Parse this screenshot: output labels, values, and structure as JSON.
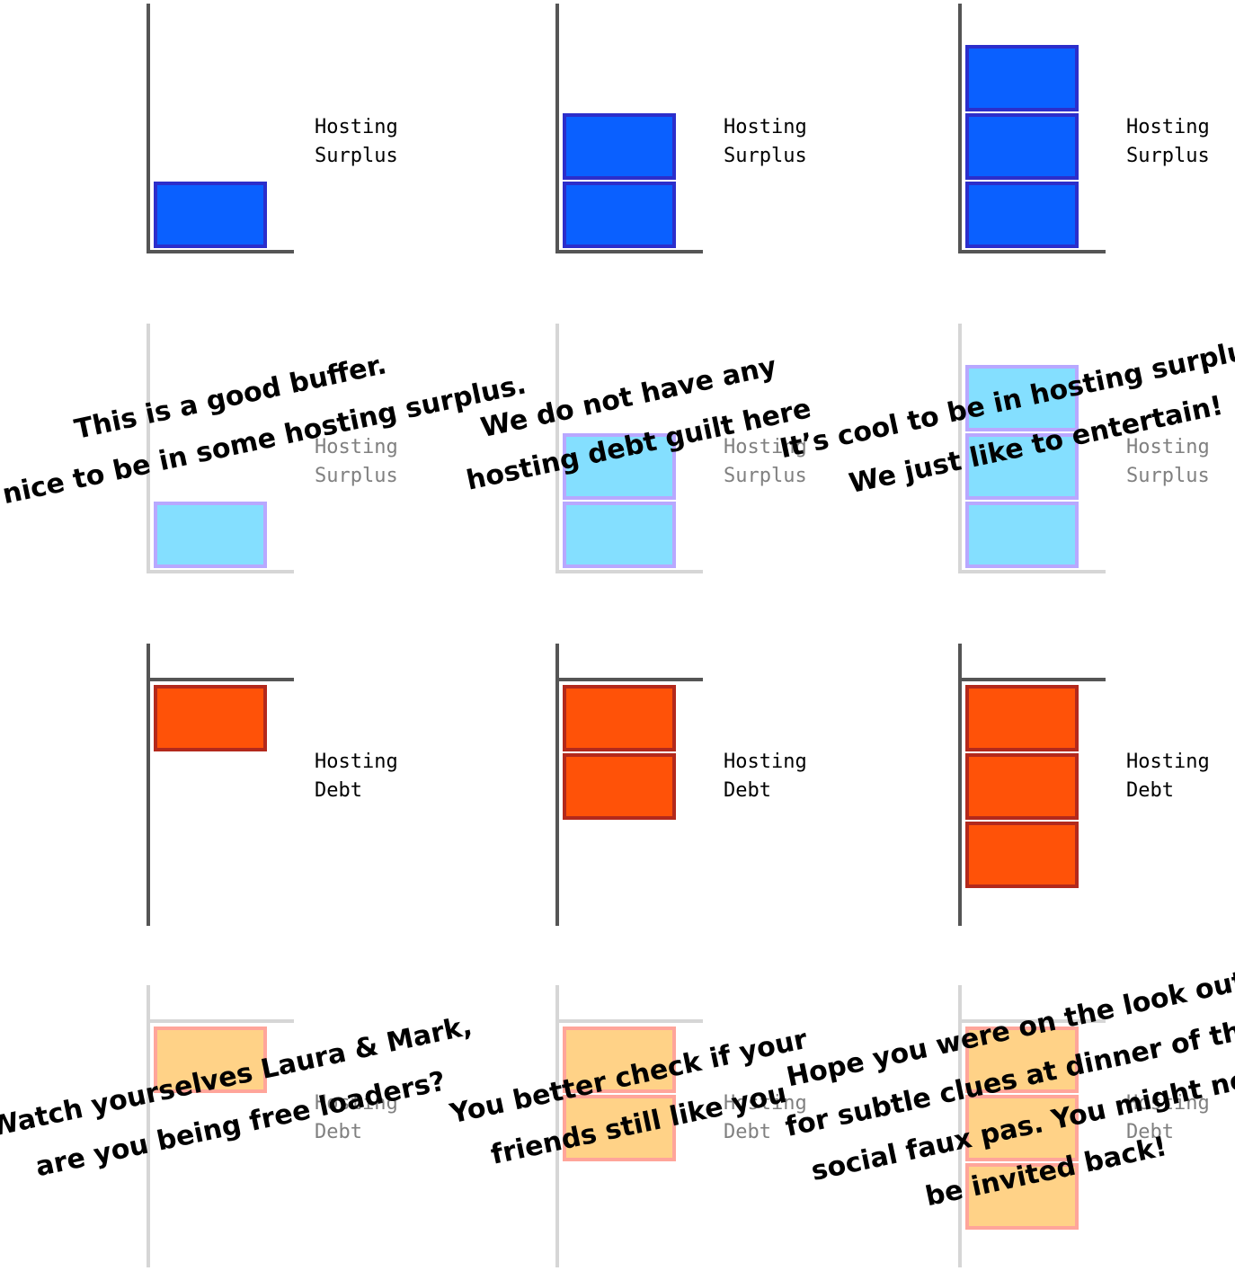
{
  "colors": {
    "axis_dark": "#555555",
    "axis_light": "#d6d6d6",
    "surplus_fill": "#0a60ff",
    "surplus_stroke": "#2c2ecb",
    "surplus_faded_fill": "#84dfff",
    "surplus_faded_stroke": "#b8a8ff",
    "debt_fill": "#ff5208",
    "debt_stroke": "#b3291c",
    "debt_faded_fill": "#ffd287",
    "debt_faded_stroke": "#ffa59a",
    "label_dark": "#000000",
    "label_faded": "#808080"
  },
  "chart_data": [
    {
      "type": "bar",
      "kind": "surplus",
      "faded": false,
      "value": 1,
      "label_line1": "Hosting",
      "label_line2": "Surplus",
      "caption": []
    },
    {
      "type": "bar",
      "kind": "surplus",
      "faded": false,
      "value": 2,
      "label_line1": "Hosting",
      "label_line2": "Surplus",
      "caption": []
    },
    {
      "type": "bar",
      "kind": "surplus",
      "faded": false,
      "value": 3,
      "label_line1": "Hosting",
      "label_line2": "Surplus",
      "caption": []
    },
    {
      "type": "bar",
      "kind": "surplus",
      "faded": true,
      "value": 1,
      "label_line1": "Hosting",
      "label_line2": "Surplus",
      "caption": [
        "This is a good buffer.",
        "Its nice to be in some hosting surplus."
      ]
    },
    {
      "type": "bar",
      "kind": "surplus",
      "faded": true,
      "value": 2,
      "label_line1": "Hosting",
      "label_line2": "Surplus",
      "caption": [
        "We do not have any",
        "hosting debt guilt here"
      ]
    },
    {
      "type": "bar",
      "kind": "surplus",
      "faded": true,
      "value": 3,
      "label_line1": "Hosting",
      "label_line2": "Surplus",
      "caption": [
        "It’s cool to be in hosting surplus.",
        "We just like to entertain!"
      ]
    },
    {
      "type": "bar",
      "kind": "debt",
      "faded": false,
      "value": 1,
      "label_line1": "Hosting",
      "label_line2": "Debt",
      "caption": []
    },
    {
      "type": "bar",
      "kind": "debt",
      "faded": false,
      "value": 2,
      "label_line1": "Hosting",
      "label_line2": "Debt",
      "caption": []
    },
    {
      "type": "bar",
      "kind": "debt",
      "faded": false,
      "value": 3,
      "label_line1": "Hosting",
      "label_line2": "Debt",
      "caption": []
    },
    {
      "type": "bar",
      "kind": "debt",
      "faded": true,
      "value": 1,
      "label_line1": "Hosting",
      "label_line2": "Debt",
      "caption": [
        "Watch yourselves Laura & Mark,",
        "are you being free loaders?"
      ]
    },
    {
      "type": "bar",
      "kind": "debt",
      "faded": true,
      "value": 2,
      "label_line1": "Hosting",
      "label_line2": "Debt",
      "caption": [
        "You better check if your",
        "friends still like you"
      ]
    },
    {
      "type": "bar",
      "kind": "debt",
      "faded": true,
      "value": 3,
      "label_line1": "Hosting",
      "label_line2": "Debt",
      "caption": [
        "Hope you were on the look out",
        "for subtle clues at dinner of this",
        "social faux pas. You might not",
        "be invited back!"
      ]
    }
  ]
}
